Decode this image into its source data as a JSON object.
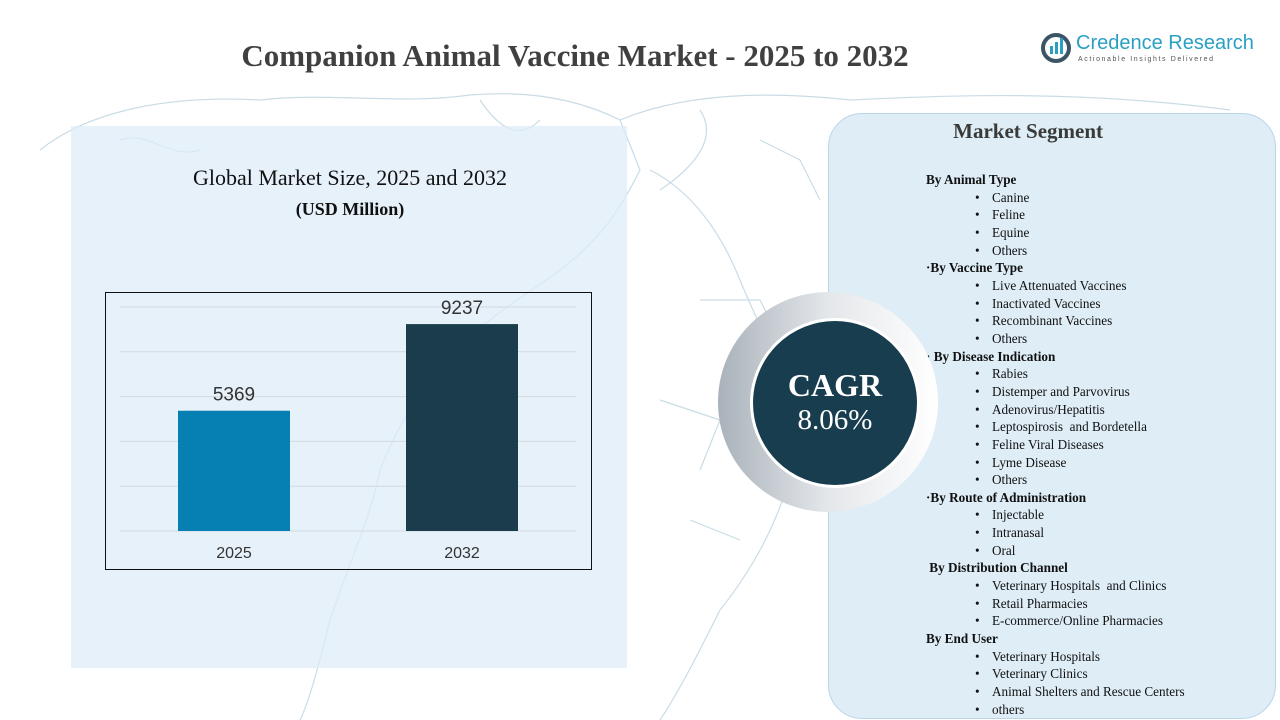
{
  "header": {
    "title": "Companion Animal Vaccine Market - 2025 to 2032"
  },
  "logo": {
    "name": "Credence Research",
    "tagline": "Actionable Insights Delivered"
  },
  "chart_panel": {
    "title": "Global Market Size, 2025 and 2032",
    "subtitle": "(USD Million)"
  },
  "chart_data": {
    "type": "bar",
    "categories": [
      "2025",
      "2032"
    ],
    "values": [
      5369,
      9237
    ],
    "colors": [
      "#0680b2",
      "#1a3c4b"
    ],
    "title": "Global Market Size, 2025 and 2032",
    "ylabel": "(USD Million)",
    "xlabel": "",
    "ylim": [
      0,
      10000
    ],
    "grid": true
  },
  "cagr": {
    "label": "CAGR",
    "value": "8.06%"
  },
  "segments": {
    "title": "Market Segment",
    "groups": [
      {
        "label": "By Animal Type",
        "items": [
          "Canine",
          "Feline",
          "Equine",
          "Others"
        ]
      },
      {
        "label": "·By Vaccine Type",
        "items": [
          "Live Attenuated Vaccines",
          "Inactivated Vaccines",
          "Recombinant Vaccines",
          "Others"
        ]
      },
      {
        "label": "· By Disease Indication",
        "items": [
          "Rabies",
          "Distemper and Parvovirus",
          "Adenovirus/Hepatitis",
          "Leptospirosis  and Bordetella",
          "Feline Viral Diseases",
          "Lyme Disease",
          "Others"
        ]
      },
      {
        "label": "·By Route of Administration",
        "items": [
          "Injectable",
          "Intranasal",
          "Oral"
        ]
      },
      {
        "label": " By Distribution Channel",
        "items": [
          "Veterinary Hospitals  and Clinics",
          "Retail Pharmacies",
          "E-commerce/Online Pharmacies"
        ]
      },
      {
        "label": "By End User",
        "items": [
          "Veterinary Hospitals",
          "Veterinary Clinics",
          "Animal Shelters and Rescue Centers",
          "others"
        ]
      }
    ]
  }
}
